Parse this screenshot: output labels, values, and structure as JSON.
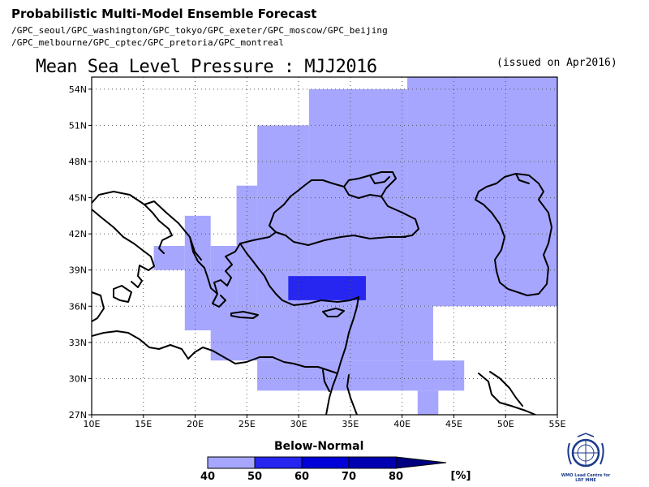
{
  "header": {
    "title": "Probabilistic Multi-Model Ensemble Forecast",
    "models_line1": "/GPC_seoul/GPC_washington/GPC_tokyo/GPC_exeter/GPC_moscow/GPC_beijing",
    "models_line2": "/GPC_melbourne/GPC_cptec/GPC_pretoria/GPC_montreal",
    "map_title": "Mean Sea Level Pressure : MJJ2016",
    "issued": "(issued on Apr2016)"
  },
  "map": {
    "x_ticks": [
      "10E",
      "15E",
      "20E",
      "25E",
      "30E",
      "35E",
      "40E",
      "45E",
      "50E",
      "55E"
    ],
    "y_ticks": [
      "27N",
      "30N",
      "33N",
      "36N",
      "39N",
      "42N",
      "45N",
      "48N",
      "51N",
      "54N"
    ],
    "lon_range": [
      10,
      55
    ],
    "lat_range": [
      27,
      55
    ],
    "grid": "dotted",
    "colors": {
      "cat_40_50": "#a6a6ff",
      "cat_50_60": "#2626f0",
      "land_outline": "#000000",
      "background": "#ffffff"
    },
    "probability_areas": [
      {
        "category": "Below-Normal 40-50%",
        "lon_from": 40.5,
        "lon_to": 55,
        "lat_from": 36,
        "lat_to": 55
      },
      {
        "category": "Below-Normal 40-50%",
        "lon_from": 31,
        "lon_to": 40.5,
        "lat_from": 36,
        "lat_to": 54
      },
      {
        "category": "Below-Normal 40-50%",
        "lon_from": 26,
        "lon_to": 31,
        "lat_from": 36,
        "lat_to": 51
      },
      {
        "category": "Below-Normal 40-50%",
        "lon_from": 24,
        "lon_to": 26,
        "lat_from": 36,
        "lat_to": 46
      },
      {
        "category": "Below-Normal 40-50%",
        "lon_from": 21.5,
        "lon_to": 24,
        "lat_from": 36,
        "lat_to": 41
      },
      {
        "category": "Below-Normal 40-50%",
        "lon_from": 19,
        "lon_to": 21.5,
        "lat_from": 36,
        "lat_to": 43.5
      },
      {
        "category": "Below-Normal 40-50%",
        "lon_from": 16,
        "lon_to": 19,
        "lat_from": 39,
        "lat_to": 41
      },
      {
        "category": "Below-Normal 40-50%",
        "lon_from": 19,
        "lon_to": 43,
        "lat_from": 34,
        "lat_to": 36
      },
      {
        "category": "Below-Normal 40-50%",
        "lon_from": 21.5,
        "lon_to": 43,
        "lat_from": 31.5,
        "lat_to": 34
      },
      {
        "category": "Below-Normal 40-50%",
        "lon_from": 26,
        "lon_to": 43,
        "lat_from": 31.5,
        "lat_to": 31.5
      },
      {
        "category": "Below-Normal 40-50%",
        "lon_from": 26,
        "lon_to": 46,
        "lat_from": 29,
        "lat_to": 31.5
      },
      {
        "category": "Below-Normal 40-50%",
        "lon_from": 41.5,
        "lon_to": 43.5,
        "lat_from": 27,
        "lat_to": 29
      },
      {
        "category": "Below-Normal 50-60%",
        "lon_from": 29,
        "lon_to": 36.5,
        "lat_from": 36.5,
        "lat_to": 38.5
      }
    ]
  },
  "colorbar": {
    "title": "Below-Normal",
    "labels": [
      "40",
      "50",
      "60",
      "70",
      "80"
    ],
    "unit": "[%]",
    "colors": [
      "#a6a6ff",
      "#2626f0",
      "#0000d8",
      "#0000b0",
      "#000080"
    ]
  },
  "logo": {
    "icon": "wmo-emblem-icon",
    "text_line1": "WMO Lead Centre for",
    "text_line2": "LRF MME"
  }
}
